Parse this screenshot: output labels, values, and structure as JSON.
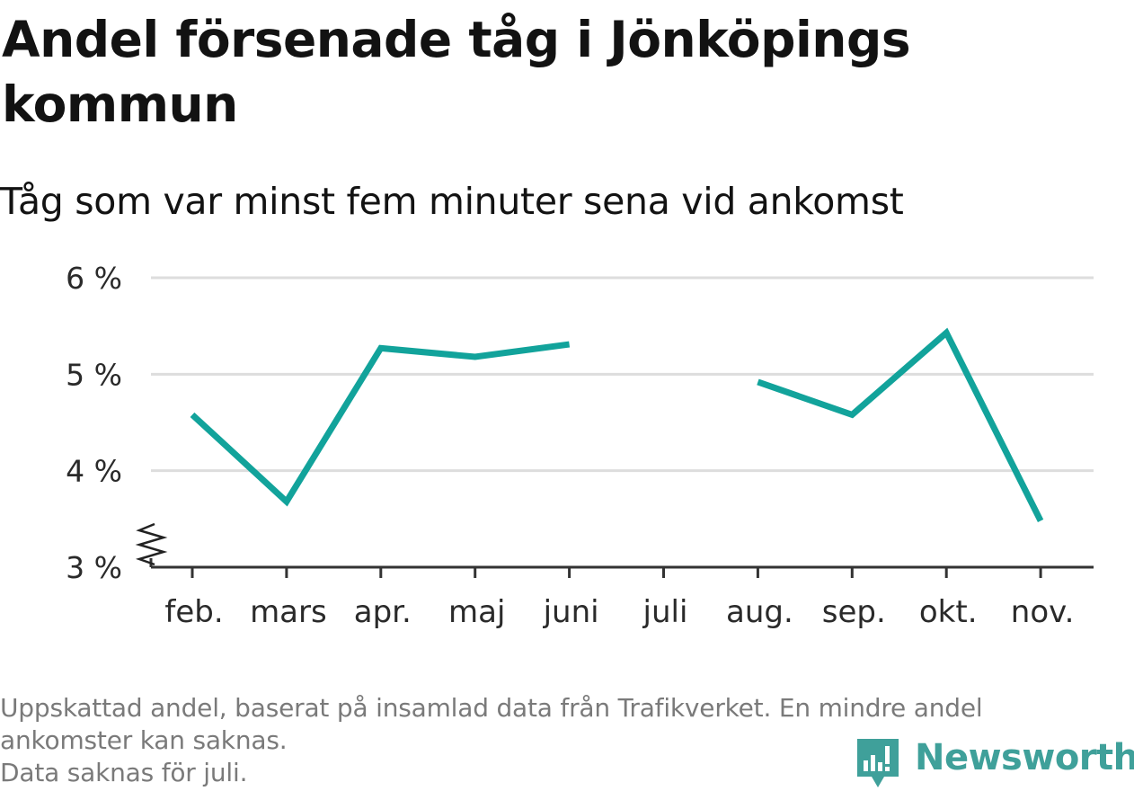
{
  "title": "Andel försenade tåg i Jönköpings kommun",
  "subtitle": "Tåg som var minst fem minuter sena vid ankomst",
  "footnote": {
    "line1": "Uppskattad andel, baserat på insamlad data från Trafikverket. En mindre andel",
    "line2": "ankomster kan saknas.",
    "line3": "Data saknas för juli."
  },
  "logo": {
    "text": "Newsworthy",
    "icon": "bar-chart-speech-bubble-icon",
    "color": "#3fa09a"
  },
  "chart_data": {
    "type": "line",
    "categories": [
      "feb.",
      "mars",
      "apr.",
      "maj",
      "juni",
      "juli",
      "aug.",
      "sep.",
      "okt.",
      "nov."
    ],
    "series": [
      {
        "values": [
          4.58,
          3.68,
          5.27,
          5.18,
          5.31,
          null,
          4.92,
          4.58,
          5.43,
          3.48
        ],
        "color": "#12a39b"
      }
    ],
    "ylim": [
      3,
      6
    ],
    "yticks": [
      3,
      4,
      5,
      6
    ],
    "ytick_labels": [
      "3 %",
      "4 %",
      "5 %",
      "6 %"
    ],
    "grid": true,
    "axis_break": true,
    "gridline_color": "#dddddd",
    "xlabel": "",
    "ylabel": ""
  }
}
